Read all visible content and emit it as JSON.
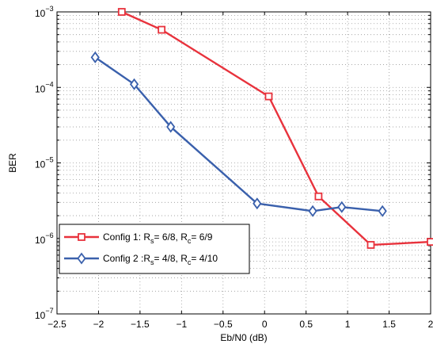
{
  "chart_data": {
    "type": "line",
    "xlabel": "Eb/N0 (dB)",
    "ylabel": "BER",
    "xlim": [
      -2.5,
      2
    ],
    "ylim_exp": [
      -7,
      -3
    ],
    "yscale": "log",
    "grid": true,
    "legend_position": "lower-left",
    "x_ticks": [
      "−2.5",
      "−2",
      "−1.5",
      "−1",
      "−0.5",
      "0",
      "0.5",
      "1",
      "1.5",
      "2"
    ],
    "y_ticks": [
      {
        "base": "10",
        "exp": "−7"
      },
      {
        "base": "10",
        "exp": "−6"
      },
      {
        "base": "10",
        "exp": "−5"
      },
      {
        "base": "10",
        "exp": "−4"
      },
      {
        "base": "10",
        "exp": "−3"
      }
    ],
    "series": [
      {
        "name": "Config 1: R",
        "legend_parts": [
          "Config 1: R",
          "s",
          "= 6/8, R",
          "c",
          "= 6/9"
        ],
        "color": "#e8323c",
        "marker": "square",
        "x": [
          -1.72,
          -1.24,
          0.05,
          0.65,
          1.28,
          2.0
        ],
        "y": [
          0.001,
          0.00058,
          7.6e-05,
          3.6e-06,
          8.2e-07,
          9e-07
        ]
      },
      {
        "name": "Config 2 :R",
        "legend_parts": [
          "Config 2 :R",
          "s",
          "= 4/8, R",
          "c",
          "= 4/10"
        ],
        "color": "#3a60ac",
        "marker": "diamond",
        "x": [
          -2.04,
          -1.57,
          -1.13,
          -0.09,
          0.58,
          0.93,
          1.42
        ],
        "y": [
          0.00025,
          0.00011,
          3e-05,
          2.9e-06,
          2.3e-06,
          2.6e-06,
          2.3e-06
        ]
      }
    ]
  }
}
